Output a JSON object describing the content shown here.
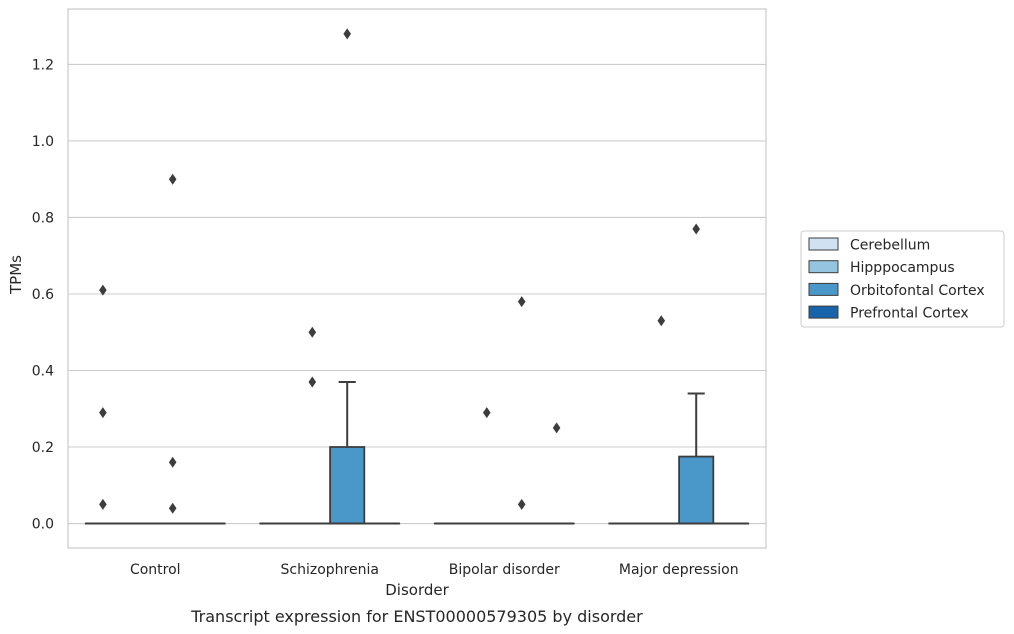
{
  "chart_data": {
    "type": "box",
    "caption": "Transcript expression for ENST00000579305 by disorder",
    "xlabel": "Disorder",
    "ylabel": "TPMs",
    "ylim": [
      -0.064,
      1.345
    ],
    "yticks": [
      0.0,
      0.2,
      0.4,
      0.6,
      0.8,
      1.0,
      1.2
    ],
    "ytick_labels": [
      "0.0",
      "0.2",
      "0.4",
      "0.6",
      "0.8",
      "1.0",
      "1.2"
    ],
    "grid": "horizontal",
    "legend_position": "right, outside plot",
    "categories": [
      "Control",
      "Schizophrenia",
      "Bipolar disorder",
      "Major depression"
    ],
    "series": [
      {
        "name": "Cerebellum",
        "color": "#d0e1f2",
        "boxes": [
          {
            "q1": 0,
            "median": 0,
            "q3": 0,
            "whisker_low": 0,
            "whisker_high": 0,
            "outliers": [
              0.05,
              0.29,
              0.61
            ]
          },
          {
            "q1": 0,
            "median": 0,
            "q3": 0,
            "whisker_low": 0,
            "whisker_high": 0,
            "outliers": []
          },
          {
            "q1": 0,
            "median": 0,
            "q3": 0,
            "whisker_low": 0,
            "whisker_high": 0,
            "outliers": []
          },
          {
            "q1": 0,
            "median": 0,
            "q3": 0,
            "whisker_low": 0,
            "whisker_high": 0,
            "outliers": []
          }
        ]
      },
      {
        "name": "Hipppocampus",
        "color": "#94c4df",
        "boxes": [
          {
            "q1": 0,
            "median": 0,
            "q3": 0,
            "whisker_low": 0,
            "whisker_high": 0,
            "outliers": []
          },
          {
            "q1": 0,
            "median": 0,
            "q3": 0,
            "whisker_low": 0,
            "whisker_high": 0,
            "outliers": [
              0.37,
              0.5
            ]
          },
          {
            "q1": 0,
            "median": 0,
            "q3": 0,
            "whisker_low": 0,
            "whisker_high": 0,
            "outliers": [
              0.29
            ]
          },
          {
            "q1": 0,
            "median": 0,
            "q3": 0,
            "whisker_low": 0,
            "whisker_high": 0,
            "outliers": [
              0.53
            ]
          }
        ]
      },
      {
        "name": "Orbitofontal Cortex",
        "color": "#4a98c9",
        "boxes": [
          {
            "q1": 0,
            "median": 0,
            "q3": 0,
            "whisker_low": 0,
            "whisker_high": 0,
            "outliers": [
              0.04,
              0.16,
              0.9
            ]
          },
          {
            "q1": 0,
            "median": 0,
            "q3": 0.2,
            "whisker_low": 0,
            "whisker_high": 0.37,
            "outliers": [
              1.28
            ]
          },
          {
            "q1": 0,
            "median": 0,
            "q3": 0,
            "whisker_low": 0,
            "whisker_high": 0,
            "outliers": [
              0.05,
              0.58
            ]
          },
          {
            "q1": 0,
            "median": 0,
            "q3": 0.175,
            "whisker_low": 0,
            "whisker_high": 0.34,
            "outliers": [
              0.77
            ]
          }
        ]
      },
      {
        "name": "Prefrontal Cortex",
        "color": "#1764ab",
        "boxes": [
          {
            "q1": 0,
            "median": 0,
            "q3": 0,
            "whisker_low": 0,
            "whisker_high": 0,
            "outliers": []
          },
          {
            "q1": 0,
            "median": 0,
            "q3": 0,
            "whisker_low": 0,
            "whisker_high": 0,
            "outliers": []
          },
          {
            "q1": 0,
            "median": 0,
            "q3": 0,
            "whisker_low": 0,
            "whisker_high": 0,
            "outliers": [
              0.25
            ]
          },
          {
            "q1": 0,
            "median": 0,
            "q3": 0,
            "whisker_low": 0,
            "whisker_high": 0,
            "outliers": []
          }
        ]
      }
    ]
  }
}
